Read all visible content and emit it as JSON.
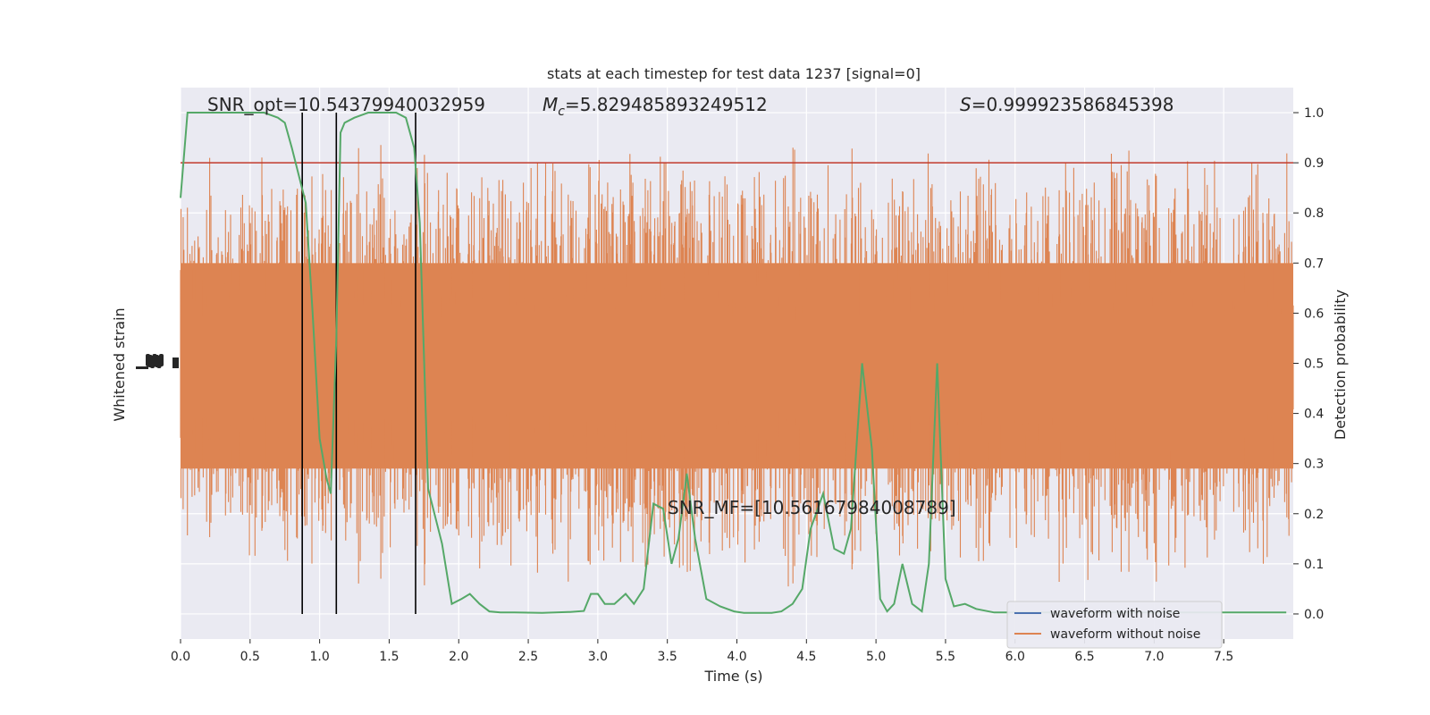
{
  "chart_data": {
    "type": "line",
    "title": "stats at each timestep for test data 1237 [signal=0]",
    "xlabel": "Time (s)",
    "ylabel_left": "Whitened strain",
    "ylabel_right": "Detection probability",
    "xlim": [
      0,
      8
    ],
    "ylim_right": [
      -0.05,
      1.05
    ],
    "x_ticks": [
      0.0,
      0.5,
      1.0,
      1.5,
      2.0,
      2.5,
      3.0,
      3.5,
      4.0,
      4.5,
      5.0,
      5.5,
      6.0,
      6.5,
      7.0,
      7.5
    ],
    "x_tick_labels": [
      "0.0",
      "0.5",
      "1.0",
      "1.5",
      "2.0",
      "2.5",
      "3.0",
      "3.5",
      "4.0",
      "4.5",
      "5.0",
      "5.5",
      "6.0",
      "6.5",
      "7.0",
      "7.5"
    ],
    "y_right_ticks": [
      0.0,
      0.1,
      0.2,
      0.3,
      0.4,
      0.5,
      0.6,
      0.7,
      0.8,
      0.9,
      1.0
    ],
    "y_right_tick_labels": [
      "0.0",
      "0.1",
      "0.2",
      "0.3",
      "0.4",
      "0.5",
      "0.6",
      "0.7",
      "0.8",
      "0.9",
      "1.0"
    ],
    "grid": true,
    "legend_position": "bottom-right",
    "annotations": {
      "snr_opt": "SNR_opt=10.54379940032959",
      "mc_symbol": "M",
      "mc_subscript": "c",
      "mc_value": "=5.829485893249512",
      "s_symbol": "S",
      "s_value": "=0.999923586845398",
      "snr_mf": "SNR_MF=[10.56167984008789]"
    },
    "threshold": {
      "value": 0.9,
      "color": "#c0392b"
    },
    "vertical_lines": [
      0.875,
      1.12,
      1.69
    ],
    "series": [
      {
        "name": "waveform with noise",
        "color": "#4c72b0",
        "kind": "strain"
      },
      {
        "name": "waveform without noise",
        "color": "#dd8452",
        "kind": "strain"
      },
      {
        "color": "#55a868",
        "kind": "probability",
        "x": [
          0.0,
          0.05,
          0.1,
          0.2,
          0.3,
          0.4,
          0.5,
          0.6,
          0.7,
          0.75,
          0.8,
          0.9,
          0.95,
          1.0,
          1.05,
          1.08,
          1.12,
          1.15,
          1.18,
          1.25,
          1.35,
          1.45,
          1.55,
          1.62,
          1.68,
          1.72,
          1.78,
          1.88,
          1.95,
          2.02,
          2.08,
          2.15,
          2.22,
          2.3,
          2.4,
          2.6,
          2.8,
          2.9,
          2.95,
          3.0,
          3.05,
          3.12,
          3.2,
          3.26,
          3.33,
          3.4,
          3.47,
          3.53,
          3.58,
          3.64,
          3.7,
          3.78,
          3.88,
          3.98,
          4.05,
          4.15,
          4.25,
          4.32,
          4.4,
          4.47,
          4.53,
          4.62,
          4.7,
          4.77,
          4.82,
          4.9,
          4.97,
          5.03,
          5.08,
          5.13,
          5.19,
          5.26,
          5.33,
          5.38,
          5.44,
          5.5,
          5.56,
          5.64,
          5.72,
          5.85,
          6.0,
          6.2,
          6.5,
          6.8,
          7.1,
          7.4,
          7.7,
          7.95
        ],
        "y": [
          0.83,
          1.0,
          1.0,
          1.0,
          1.0,
          1.0,
          1.0,
          1.0,
          0.99,
          0.98,
          0.93,
          0.82,
          0.6,
          0.35,
          0.27,
          0.24,
          0.55,
          0.96,
          0.98,
          0.99,
          1.0,
          1.0,
          1.0,
          0.99,
          0.93,
          0.78,
          0.25,
          0.14,
          0.02,
          0.03,
          0.04,
          0.02,
          0.005,
          0.003,
          0.003,
          0.002,
          0.004,
          0.006,
          0.04,
          0.04,
          0.02,
          0.02,
          0.04,
          0.02,
          0.05,
          0.22,
          0.21,
          0.1,
          0.15,
          0.28,
          0.15,
          0.03,
          0.015,
          0.005,
          0.002,
          0.002,
          0.002,
          0.005,
          0.02,
          0.05,
          0.17,
          0.24,
          0.13,
          0.12,
          0.17,
          0.5,
          0.33,
          0.03,
          0.005,
          0.02,
          0.1,
          0.02,
          0.005,
          0.1,
          0.5,
          0.07,
          0.015,
          0.02,
          0.01,
          0.003,
          0.003,
          0.003,
          0.003,
          0.003,
          0.003,
          0.003,
          0.003,
          0.003
        ]
      }
    ]
  }
}
